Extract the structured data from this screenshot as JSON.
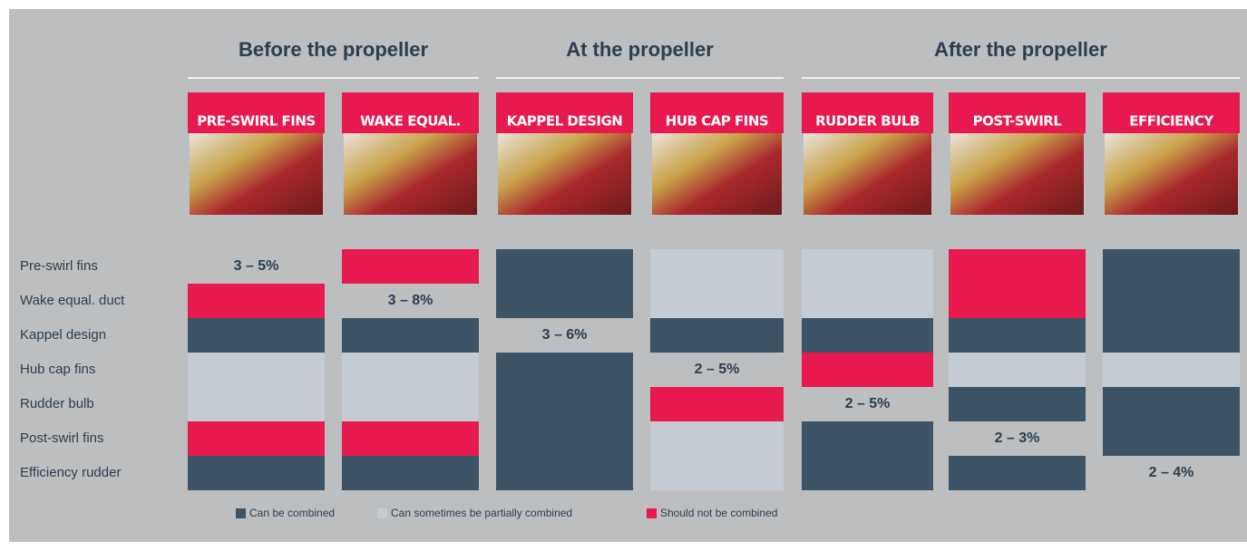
{
  "groups": [
    {
      "label": "Before the propeller",
      "span": [
        0,
        1
      ]
    },
    {
      "label": "At the propeller",
      "span": [
        2,
        3
      ]
    },
    {
      "label": "After the propeller",
      "span": [
        4,
        6
      ]
    }
  ],
  "row_labels": [
    "Pre-swirl fins",
    "Wake equal. duct",
    "Kappel design",
    "Hub cap fins",
    "Rudder bulb",
    "Post-swirl fins",
    "Efficiency rudder"
  ],
  "columns": [
    {
      "header": "PRE-SWIRL FINS",
      "gain": "3 – 5%",
      "cells": [
        null,
        2,
        0,
        1,
        1,
        2,
        0
      ]
    },
    {
      "header": "WAKE EQUAL.",
      "gain": "3 – 8%",
      "cells": [
        2,
        null,
        0,
        1,
        1,
        2,
        0
      ]
    },
    {
      "header": "KAPPEL DESIGN",
      "gain": "3 – 6%",
      "cells": [
        0,
        0,
        null,
        0,
        0,
        0,
        0
      ]
    },
    {
      "header": "HUB CAP FINS",
      "gain": "2 – 5%",
      "cells": [
        1,
        1,
        0,
        null,
        2,
        1,
        1
      ]
    },
    {
      "header": "RUDDER BULB",
      "gain": "2 – 5%",
      "cells": [
        1,
        1,
        0,
        2,
        null,
        0,
        0
      ]
    },
    {
      "header": "POST-SWIRL",
      "gain": "2 – 3%",
      "cells": [
        2,
        2,
        0,
        1,
        0,
        null,
        0
      ]
    },
    {
      "header": "EFFICIENCY",
      "gain": "2 – 4%",
      "cells": [
        0,
        0,
        0,
        1,
        0,
        0,
        null
      ]
    }
  ],
  "legend": [
    {
      "label": "Can be combined",
      "color": "#3d5366"
    },
    {
      "label": "Can sometimes be partially combined",
      "color": "#c5cbd3"
    },
    {
      "label": "Should not be combined",
      "color": "#e8194f"
    }
  ]
}
